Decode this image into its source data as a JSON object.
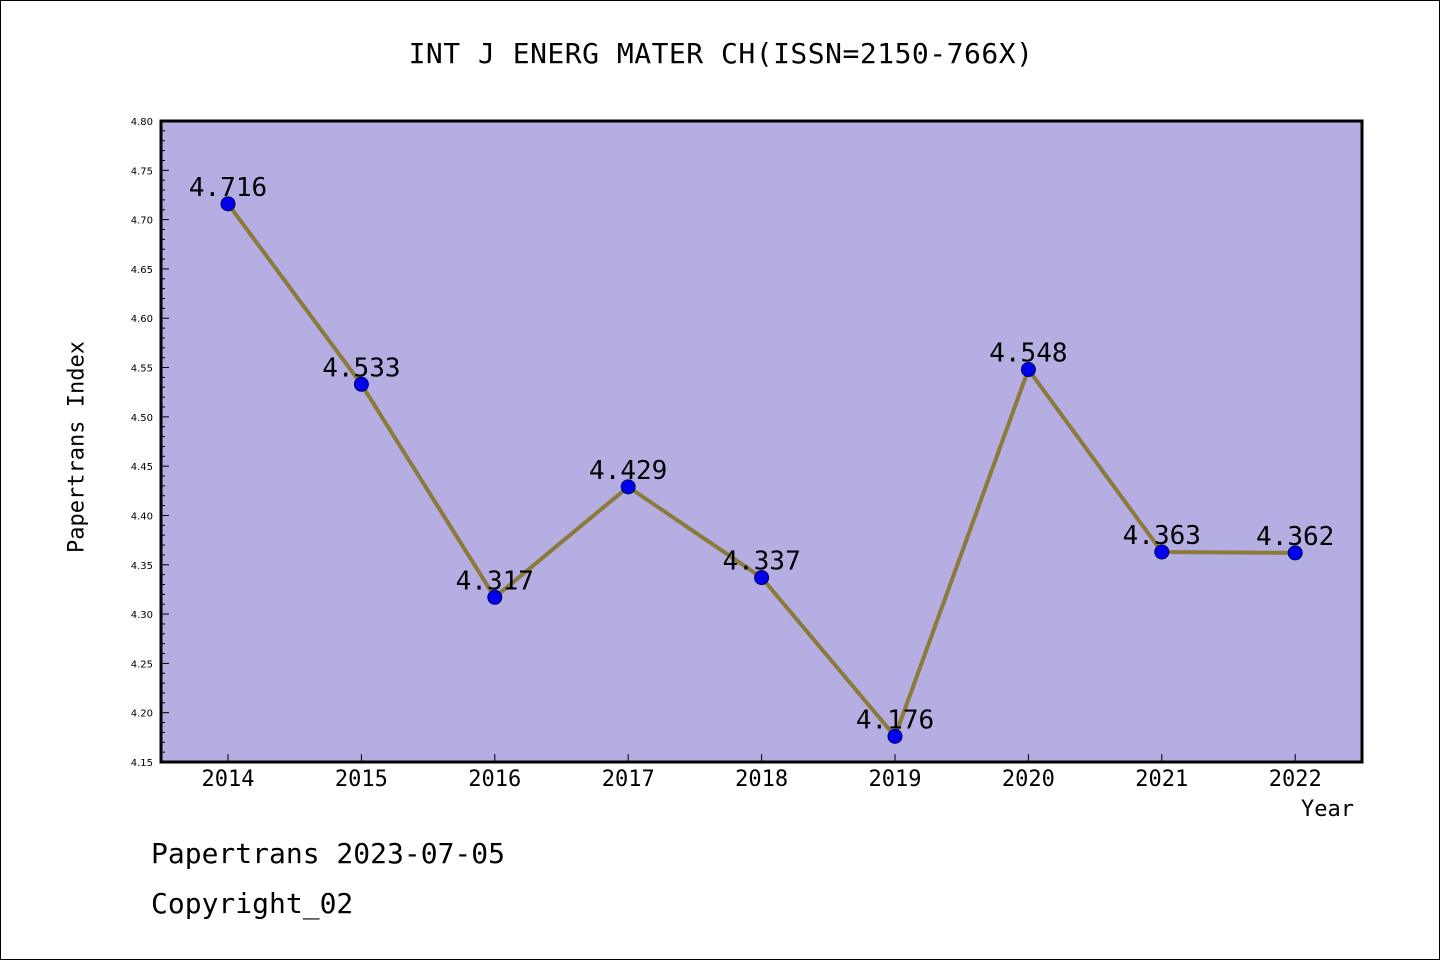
{
  "chart_data": {
    "type": "line",
    "title": "INT J ENERG MATER CH(ISSN=2150-766X)",
    "xlabel": "Year",
    "ylabel": "Papertrans Index",
    "categories": [
      "2014",
      "2015",
      "2016",
      "2017",
      "2018",
      "2019",
      "2020",
      "2021",
      "2022"
    ],
    "series": [
      {
        "values": [
          4.716,
          4.533,
          4.317,
          4.429,
          4.337,
          4.176,
          4.548,
          4.363,
          4.362
        ],
        "data_labels": [
          "4.716",
          "4.533",
          "4.317",
          "4.429",
          "4.337",
          "4.176",
          "4.548",
          "4.363",
          "4.362"
        ]
      }
    ],
    "ylim": [
      4.15,
      4.8
    ],
    "y_ticks": [
      "4.15",
      "4.20",
      "4.25",
      "4.30",
      "4.35",
      "4.40",
      "4.45",
      "4.50",
      "4.55",
      "4.60",
      "4.65",
      "4.70",
      "4.75",
      "4.80"
    ],
    "grid": false,
    "legend": "none",
    "colors": {
      "plot_background": "#b5aee2",
      "line": "#8b7a3a",
      "marker": "#0000ee"
    }
  },
  "footer": {
    "line1": "Papertrans 2023-07-05",
    "line2": "Copyright_02"
  }
}
